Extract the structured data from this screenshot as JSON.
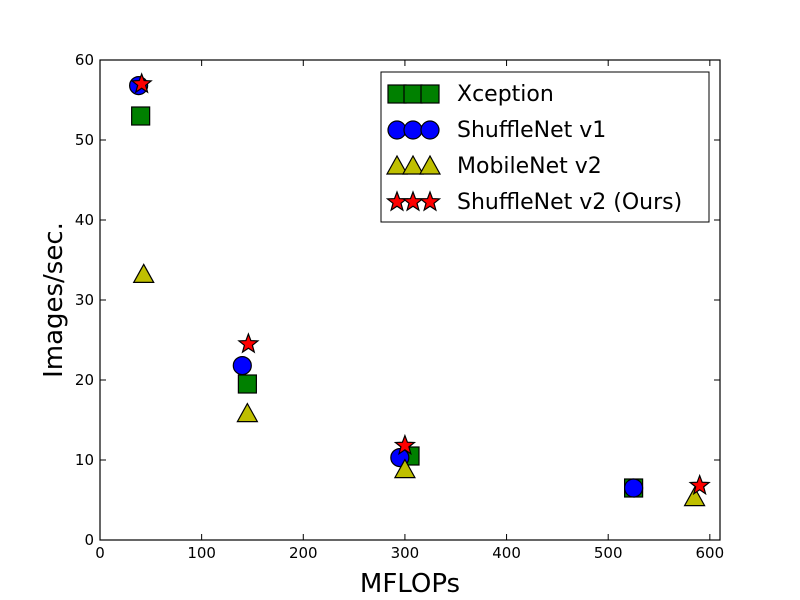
{
  "chart_data": {
    "type": "scatter",
    "title": "",
    "xlabel": "MFLOPs",
    "ylabel": "Images/sec.",
    "xlim": [
      0,
      610
    ],
    "ylim": [
      0,
      60
    ],
    "xticks": [
      "0",
      "100",
      "200",
      "300",
      "400",
      "500",
      "600"
    ],
    "yticks": [
      "0",
      "10",
      "20",
      "30",
      "40",
      "50",
      "60"
    ],
    "grid": false,
    "legend_position": "top-right",
    "series": [
      {
        "name": "Xception",
        "marker": "square",
        "color": "#008000",
        "x": [
          40,
          145,
          305,
          525
        ],
        "y": [
          53,
          19.5,
          10.5,
          6.5
        ]
      },
      {
        "name": "ShuffleNet v1",
        "marker": "circle",
        "color": "#0000ff",
        "x": [
          38,
          140,
          295,
          525
        ],
        "y": [
          56.8,
          21.8,
          10.3,
          6.5
        ]
      },
      {
        "name": "MobileNet v2",
        "marker": "triangle",
        "color": "#bfbf00",
        "x": [
          43,
          145,
          300,
          585
        ],
        "y": [
          33.2,
          15.8,
          8.8,
          5.3
        ]
      },
      {
        "name": "ShuffleNet v2 (Ours)",
        "marker": "star",
        "color": "#ff0000",
        "x": [
          41,
          146,
          300,
          590
        ],
        "y": [
          57,
          24.5,
          11.8,
          6.8
        ]
      }
    ]
  }
}
